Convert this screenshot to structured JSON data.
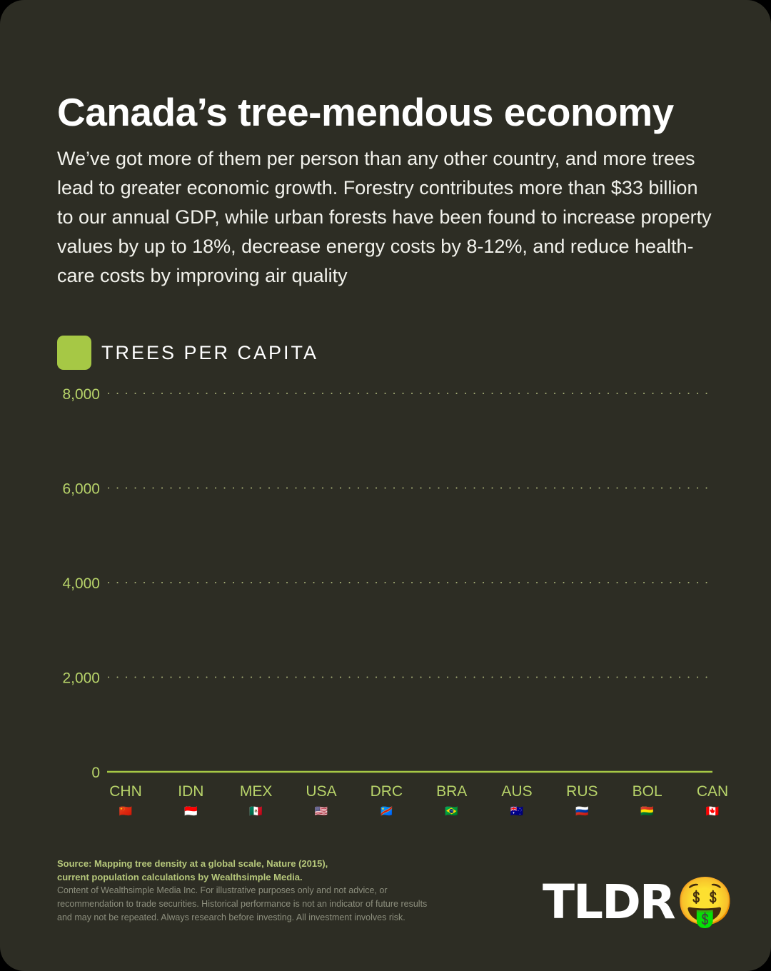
{
  "header": {
    "title": "Canada’s tree-mendous economy",
    "subtitle": "We’ve got more of them per person than any other country, and more trees lead to greater economic growth. Forestry contributes more than $33 billion to our annual GDP,  while urban forests have been found to increase property values by up to 18%, decrease energy costs by 8-12%, and reduce health-care costs by improving air quality"
  },
  "legend": {
    "label": "TREES PER CAPITA",
    "color": "#a6c845"
  },
  "colors": {
    "background": "#2d2d24",
    "accent": "#a6c845",
    "tick_text": "#b8d46a",
    "gridline": "#c9d48e"
  },
  "chart_data": {
    "type": "bar",
    "categories": [
      "CHN",
      "IDN",
      "MEX",
      "USA",
      "DRC",
      "BRA",
      "AUS",
      "RUS",
      "BOL",
      "CAN"
    ],
    "flags": [
      "🇨🇳",
      "🇮🇩",
      "🇲🇽",
      "🇺🇸",
      "🇨🇩",
      "🇧🇷",
      "🇦🇺",
      "🇷🇺",
      "🇧🇴",
      "🇨🇦"
    ],
    "series": [
      {
        "values": [
          0,
          0,
          0,
          0,
          0,
          0,
          0,
          5,
          5,
          0
        ]
      }
    ],
    "ylim": [
      0,
      8000
    ],
    "yticks": [
      0,
      2000,
      4000,
      6000,
      8000
    ],
    "ytick_labels": [
      "0",
      "2,000",
      "4,000",
      "6,000",
      "8,000"
    ],
    "grid": true,
    "legend_position": "top-left"
  },
  "footer": {
    "source_line1": "Source: Mapping tree density at a global scale, Nature (2015),",
    "source_line2": "current population calculations by Wealthsimple Media.",
    "disclaimer_line1": "Content of Wealthsimple Media Inc. For illustrative purposes only and not advice, or",
    "disclaimer_line2": "recommendation to trade securities. Historical performance is not an indicator of future results",
    "disclaimer_line3": "and may not be repeated. Always research before investing. All investment involves risk.",
    "logo_text": "TLDR",
    "logo_emoji": "🤑"
  }
}
